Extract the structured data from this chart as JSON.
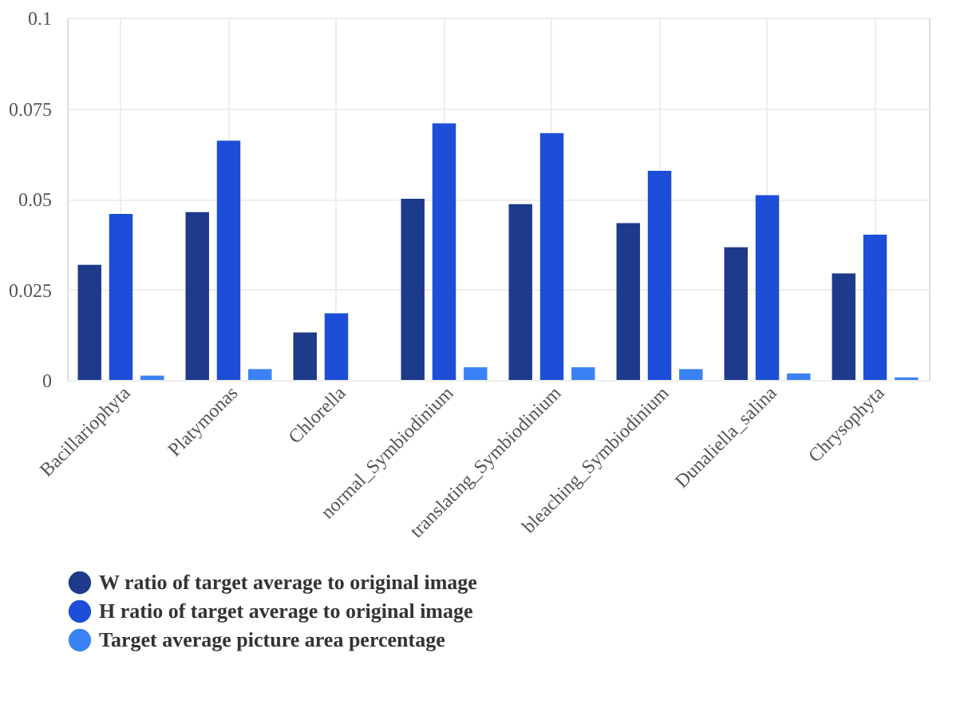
{
  "chart_data": {
    "type": "bar",
    "categories": [
      "Bacillariophyta",
      "Platymonas",
      "Chlorella",
      "normal_Symbiodinium",
      "translating_Symbiodinium",
      "bleaching_Symbiodinium",
      "Dunaliella_salina",
      "Chrysophyta"
    ],
    "series": [
      {
        "name": "W ratio of target average to original image",
        "color": "#1e3a8a",
        "values": [
          0.0318,
          0.0463,
          0.0131,
          0.05,
          0.0485,
          0.0433,
          0.0366,
          0.0294
        ]
      },
      {
        "name": "H ratio of target average to original image",
        "color": "#1d4ed8",
        "values": [
          0.0458,
          0.066,
          0.0184,
          0.0708,
          0.0681,
          0.0577,
          0.051,
          0.0401
        ]
      },
      {
        "name": "Target average picture area percentage",
        "color": "#3b82f6",
        "values": [
          0.0012,
          0.003,
          null,
          0.0035,
          0.0035,
          0.003,
          0.0018,
          0.0007
        ]
      }
    ],
    "ylim": [
      0,
      0.1
    ],
    "yticks": [
      0,
      0.025,
      0.05,
      0.075,
      0.1
    ],
    "grid": true,
    "legend": "bottom"
  }
}
